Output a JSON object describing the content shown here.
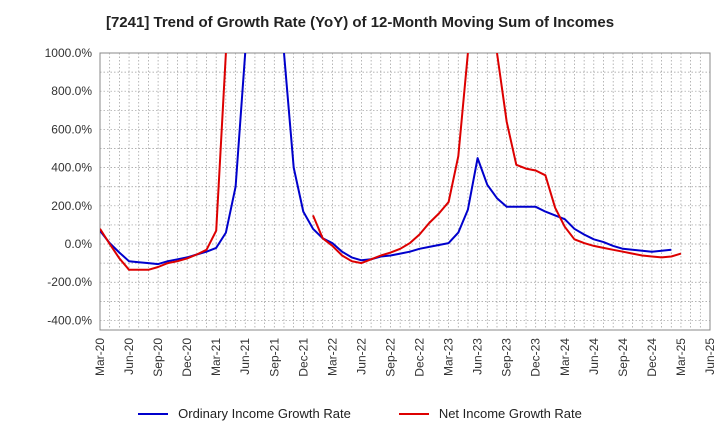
{
  "chart_data": {
    "type": "line",
    "title": "[7241]  Trend of Growth Rate (YoY) of 12-Month Moving Sum of Incomes",
    "xlabel": "",
    "ylabel": "",
    "ylim": [
      -450,
      1000
    ],
    "y_ticks": [
      1000,
      800,
      600,
      400,
      200,
      0,
      -200,
      -400
    ],
    "y_tick_labels": [
      "1000.0%",
      "800.0%",
      "600.0%",
      "400.0%",
      "200.0%",
      "0.0%",
      "-200.0%",
      "-400.0%"
    ],
    "x_tick_labels": [
      "Mar-20",
      "Jun-20",
      "Sep-20",
      "Dec-20",
      "Mar-21",
      "Jun-21",
      "Sep-21",
      "Dec-21",
      "Mar-22",
      "Jun-22",
      "Sep-22",
      "Dec-22",
      "Mar-23",
      "Jun-23",
      "Sep-23",
      "Dec-23",
      "Mar-24",
      "Jun-24",
      "Sep-24",
      "Dec-24",
      "Mar-25",
      "Jun-25"
    ],
    "grid": true,
    "legend_position": "bottom",
    "series": [
      {
        "name": "Ordinary Income Growth Rate",
        "color": "#0000cc",
        "values": [
          [
            0,
            70
          ],
          [
            1,
            5
          ],
          [
            2,
            -45
          ],
          [
            3,
            -90
          ],
          [
            4,
            -95
          ],
          [
            5,
            -100
          ],
          [
            6,
            -105
          ],
          [
            7,
            -90
          ],
          [
            8,
            -80
          ],
          [
            9,
            -70
          ],
          [
            10,
            -55
          ],
          [
            11,
            -40
          ],
          [
            12,
            -20
          ],
          [
            13,
            60
          ],
          [
            14,
            300
          ],
          [
            15,
            1000
          ],
          [
            16,
            null
          ],
          [
            17,
            null
          ],
          [
            18,
            null
          ],
          [
            19,
            1000
          ],
          [
            20,
            400
          ],
          [
            21,
            170
          ],
          [
            22,
            80
          ],
          [
            23,
            30
          ],
          [
            24,
            5
          ],
          [
            25,
            -40
          ],
          [
            26,
            -70
          ],
          [
            27,
            -85
          ],
          [
            28,
            -80
          ],
          [
            29,
            -65
          ],
          [
            30,
            -60
          ],
          [
            31,
            -50
          ],
          [
            32,
            -40
          ],
          [
            33,
            -25
          ],
          [
            34,
            -15
          ],
          [
            35,
            -5
          ],
          [
            36,
            5
          ],
          [
            37,
            60
          ],
          [
            38,
            180
          ],
          [
            39,
            450
          ],
          [
            40,
            310
          ],
          [
            41,
            240
          ],
          [
            42,
            195
          ],
          [
            43,
            195
          ],
          [
            44,
            195
          ],
          [
            45,
            195
          ],
          [
            46,
            170
          ],
          [
            47,
            150
          ],
          [
            48,
            130
          ],
          [
            49,
            80
          ],
          [
            50,
            50
          ],
          [
            51,
            25
          ],
          [
            52,
            10
          ],
          [
            53,
            -10
          ],
          [
            54,
            -25
          ],
          [
            55,
            -30
          ],
          [
            56,
            -35
          ],
          [
            57,
            -40
          ],
          [
            58,
            -35
          ],
          [
            59,
            -30
          ]
        ]
      },
      {
        "name": "Net Income Growth Rate",
        "color": "#dd0000",
        "values": [
          [
            0,
            80
          ],
          [
            1,
            0
          ],
          [
            2,
            -75
          ],
          [
            3,
            -135
          ],
          [
            4,
            -135
          ],
          [
            5,
            -135
          ],
          [
            6,
            -120
          ],
          [
            7,
            -100
          ],
          [
            8,
            -90
          ],
          [
            9,
            -75
          ],
          [
            10,
            -55
          ],
          [
            11,
            -30
          ],
          [
            12,
            70
          ],
          [
            13,
            1000
          ],
          [
            14,
            null
          ],
          [
            15,
            null
          ],
          [
            16,
            null
          ],
          [
            17,
            null
          ],
          [
            18,
            null
          ],
          [
            19,
            null
          ],
          [
            20,
            null
          ],
          [
            21,
            null
          ],
          [
            22,
            150
          ],
          [
            23,
            30
          ],
          [
            24,
            -10
          ],
          [
            25,
            -60
          ],
          [
            26,
            -90
          ],
          [
            27,
            -100
          ],
          [
            28,
            -80
          ],
          [
            29,
            -60
          ],
          [
            30,
            -45
          ],
          [
            31,
            -25
          ],
          [
            32,
            5
          ],
          [
            33,
            50
          ],
          [
            34,
            110
          ],
          [
            35,
            160
          ],
          [
            36,
            220
          ],
          [
            37,
            460
          ],
          [
            38,
            1000
          ],
          [
            39,
            null
          ],
          [
            40,
            null
          ],
          [
            41,
            1000
          ],
          [
            42,
            640
          ],
          [
            43,
            415
          ],
          [
            44,
            395
          ],
          [
            45,
            385
          ],
          [
            46,
            360
          ],
          [
            47,
            190
          ],
          [
            48,
            90
          ],
          [
            49,
            25
          ],
          [
            50,
            5
          ],
          [
            51,
            -10
          ],
          [
            52,
            -20
          ],
          [
            53,
            -30
          ],
          [
            54,
            -40
          ],
          [
            55,
            -50
          ],
          [
            56,
            -60
          ],
          [
            57,
            -65
          ],
          [
            58,
            -70
          ],
          [
            59,
            -65
          ],
          [
            60,
            -50
          ]
        ]
      }
    ]
  }
}
